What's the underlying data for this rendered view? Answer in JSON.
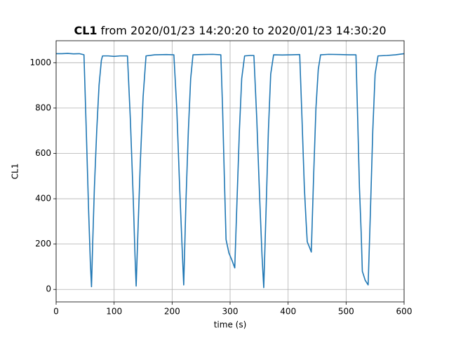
{
  "chart_data": {
    "type": "line",
    "title": [
      "CL1",
      "from 2020/01/23 14:20:20 to 2020/01/23 14:30:20"
    ],
    "xlabel": "time (s)",
    "ylabel": "CL1",
    "xlim": [
      0,
      600
    ],
    "xticks": [
      0,
      100,
      200,
      300,
      400,
      500,
      600
    ],
    "ylim": [
      -55,
      1097
    ],
    "yticks": [
      0,
      200,
      400,
      600,
      800,
      1000
    ],
    "grid": true,
    "x": [
      0,
      10,
      20,
      30,
      40,
      48,
      52,
      56,
      59,
      61,
      63,
      66,
      70,
      74,
      78,
      80,
      90,
      100,
      110,
      123,
      128,
      133,
      136,
      138,
      141,
      145,
      150,
      155,
      170,
      190,
      203,
      208,
      213,
      217,
      220,
      224,
      228,
      232,
      236,
      250,
      270,
      284,
      287,
      290,
      293,
      298,
      303,
      308,
      312,
      316,
      320,
      325,
      335,
      341,
      346,
      351,
      355,
      358,
      362,
      366,
      370,
      375,
      390,
      405,
      420,
      424,
      428,
      431,
      433,
      437,
      440,
      444,
      448,
      452,
      456,
      470,
      490,
      505,
      517,
      520,
      523,
      526,
      528,
      533,
      538,
      542,
      546,
      550,
      555,
      570,
      585,
      600
    ],
    "series": [
      {
        "name": "CL1",
        "color": "#1f77b4",
        "values": [
          1040,
          1040,
          1041,
          1039,
          1040,
          1035,
          700,
          350,
          120,
          12,
          200,
          450,
          700,
          900,
          1010,
          1030,
          1030,
          1028,
          1030,
          1030,
          750,
          400,
          150,
          15,
          250,
          550,
          850,
          1030,
          1035,
          1036,
          1035,
          800,
          450,
          200,
          20,
          400,
          700,
          930,
          1035,
          1036,
          1037,
          1035,
          800,
          500,
          220,
          160,
          130,
          95,
          400,
          700,
          930,
          1030,
          1032,
          1032,
          750,
          400,
          150,
          8,
          350,
          700,
          950,
          1035,
          1034,
          1035,
          1036,
          750,
          450,
          300,
          210,
          185,
          165,
          500,
          800,
          970,
          1035,
          1037,
          1036,
          1035,
          1035,
          750,
          450,
          250,
          80,
          40,
          20,
          350,
          700,
          950,
          1030,
          1032,
          1035,
          1040
        ]
      }
    ]
  }
}
